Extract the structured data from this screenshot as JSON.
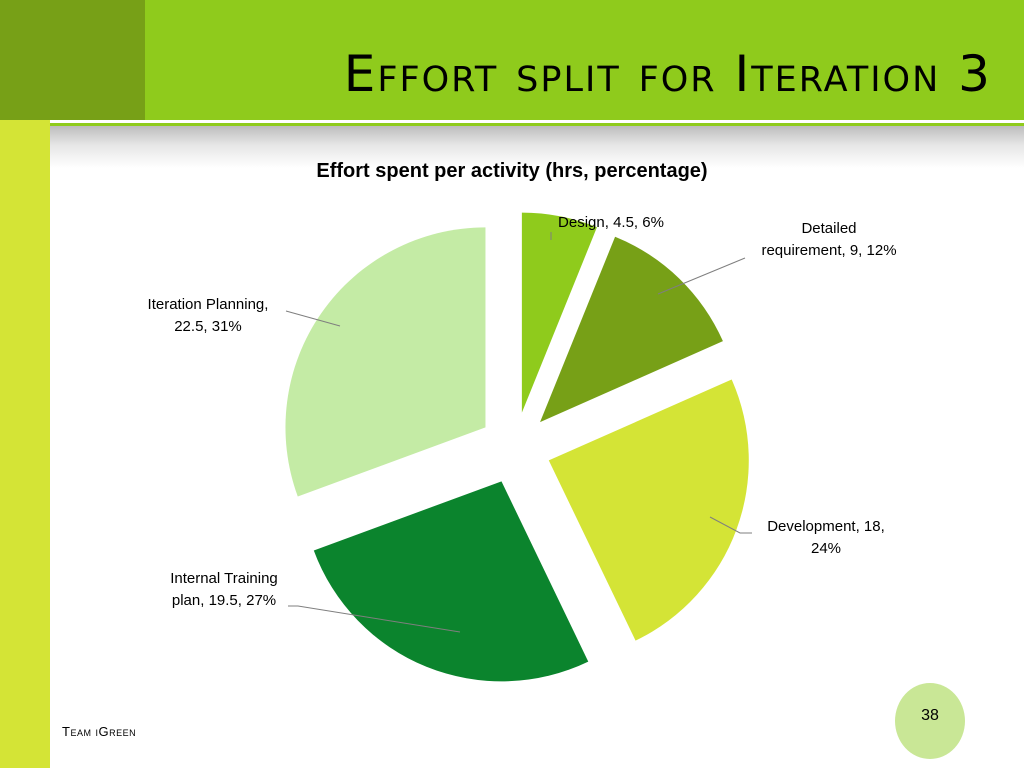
{
  "slide": {
    "title": "Effort split for Iteration 3",
    "footer": "Team iGreen",
    "page_number": "38"
  },
  "chart_data": {
    "type": "pie",
    "title": "Effort spent per activity (hrs, percentage)",
    "slices": [
      {
        "name": "Design",
        "value": 4.5,
        "percent": 6,
        "color": "#8fcb1c",
        "label": [
          "Design, 4.5, 6%"
        ]
      },
      {
        "name": "Detailed requirement",
        "value": 9,
        "percent": 12,
        "color": "#77a017",
        "label": [
          "Detailed",
          "requirement, 9, 12%"
        ]
      },
      {
        "name": "Development",
        "value": 18,
        "percent": 24,
        "color": "#d4e436",
        "label": [
          "Development, 18,",
          "24%"
        ]
      },
      {
        "name": "Internal Training plan",
        "value": 19.5,
        "percent": 27,
        "color": "#0b842d",
        "label": [
          "Internal Training",
          "plan, 19.5, 27%"
        ]
      },
      {
        "name": "Iteration Planning",
        "value": 22.5,
        "percent": 31,
        "color": "#c4eba5",
        "label": [
          "Iteration Planning,",
          "22.5, 31%"
        ]
      }
    ],
    "exploded": true,
    "legend": "none"
  }
}
